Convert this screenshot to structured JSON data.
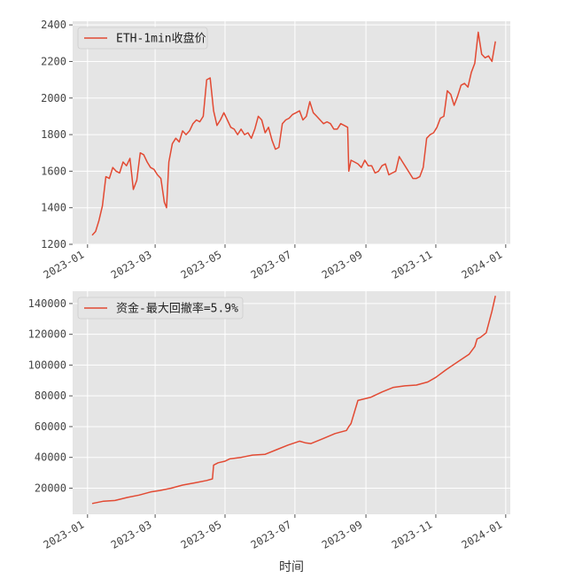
{
  "chart_data": [
    {
      "type": "line",
      "title": "",
      "xlabel": "",
      "ylabel": "",
      "x_ticks": [
        "2023-01",
        "2023-03",
        "2023-05",
        "2023-07",
        "2023-09",
        "2023-11",
        "2024-01"
      ],
      "y_ticks": [
        "1200",
        "1400",
        "1600",
        "1800",
        "2000",
        "2200",
        "2400"
      ],
      "ylim": [
        1200,
        2420
      ],
      "xlim": [
        "2022-12-19",
        "2024-01-05"
      ],
      "grid": true,
      "legend_position": "top-left",
      "colors": {
        "line": "#e24a33",
        "background": "#e5e5e5",
        "grid": "#ffffff"
      },
      "series": [
        {
          "name": "ETH-1min收盘价",
          "x": [
            "2023-01-05",
            "2023-01-08",
            "2023-01-11",
            "2023-01-14",
            "2023-01-17",
            "2023-01-20",
            "2023-01-23",
            "2023-01-26",
            "2023-01-29",
            "2023-02-01",
            "2023-02-04",
            "2023-02-07",
            "2023-02-10",
            "2023-02-13",
            "2023-02-16",
            "2023-02-19",
            "2023-02-22",
            "2023-02-25",
            "2023-02-28",
            "2023-03-03",
            "2023-03-06",
            "2023-03-09",
            "2023-03-11",
            "2023-03-13",
            "2023-03-16",
            "2023-03-19",
            "2023-03-22",
            "2023-03-25",
            "2023-03-28",
            "2023-03-31",
            "2023-04-03",
            "2023-04-06",
            "2023-04-09",
            "2023-04-12",
            "2023-04-15",
            "2023-04-18",
            "2023-04-21",
            "2023-04-24",
            "2023-04-27",
            "2023-04-30",
            "2023-05-03",
            "2023-05-06",
            "2023-05-09",
            "2023-05-12",
            "2023-05-15",
            "2023-05-18",
            "2023-05-21",
            "2023-05-24",
            "2023-05-27",
            "2023-05-30",
            "2023-06-02",
            "2023-06-05",
            "2023-06-08",
            "2023-06-11",
            "2023-06-14",
            "2023-06-17",
            "2023-06-20",
            "2023-06-23",
            "2023-06-26",
            "2023-06-29",
            "2023-07-02",
            "2023-07-05",
            "2023-07-08",
            "2023-07-11",
            "2023-07-14",
            "2023-07-17",
            "2023-07-20",
            "2023-07-23",
            "2023-07-26",
            "2023-07-29",
            "2023-08-01",
            "2023-08-04",
            "2023-08-07",
            "2023-08-10",
            "2023-08-13",
            "2023-08-16",
            "2023-08-17",
            "2023-08-19",
            "2023-08-22",
            "2023-08-25",
            "2023-08-28",
            "2023-08-31",
            "2023-09-03",
            "2023-09-06",
            "2023-09-09",
            "2023-09-12",
            "2023-09-15",
            "2023-09-18",
            "2023-09-21",
            "2023-09-24",
            "2023-09-27",
            "2023-09-30",
            "2023-10-03",
            "2023-10-06",
            "2023-10-09",
            "2023-10-12",
            "2023-10-15",
            "2023-10-18",
            "2023-10-21",
            "2023-10-24",
            "2023-10-27",
            "2023-10-30",
            "2023-11-02",
            "2023-11-05",
            "2023-11-08",
            "2023-11-11",
            "2023-11-14",
            "2023-11-17",
            "2023-11-20",
            "2023-11-23",
            "2023-11-26",
            "2023-11-29",
            "2023-12-02",
            "2023-12-05",
            "2023-12-08",
            "2023-12-11",
            "2023-12-14",
            "2023-12-17",
            "2023-12-20",
            "2023-12-23"
          ],
          "y": [
            1250,
            1270,
            1330,
            1410,
            1570,
            1560,
            1620,
            1600,
            1590,
            1650,
            1630,
            1670,
            1500,
            1550,
            1700,
            1690,
            1650,
            1620,
            1610,
            1580,
            1560,
            1430,
            1400,
            1650,
            1750,
            1780,
            1760,
            1820,
            1800,
            1820,
            1860,
            1880,
            1870,
            1900,
            2100,
            2110,
            1930,
            1850,
            1880,
            1920,
            1880,
            1840,
            1830,
            1800,
            1830,
            1800,
            1810,
            1780,
            1830,
            1900,
            1880,
            1810,
            1840,
            1770,
            1720,
            1730,
            1860,
            1880,
            1890,
            1910,
            1920,
            1930,
            1880,
            1900,
            1980,
            1920,
            1900,
            1880,
            1860,
            1870,
            1860,
            1830,
            1830,
            1860,
            1850,
            1840,
            1600,
            1660,
            1650,
            1640,
            1620,
            1660,
            1630,
            1630,
            1590,
            1600,
            1630,
            1640,
            1580,
            1590,
            1600,
            1680,
            1650,
            1620,
            1590,
            1560,
            1560,
            1570,
            1620,
            1780,
            1800,
            1810,
            1840,
            1890,
            1900,
            2040,
            2020,
            1960,
            2010,
            2070,
            2080,
            2060,
            2140,
            2190,
            2360,
            2240,
            2220,
            2230,
            2200,
            2310
          ]
        }
      ]
    },
    {
      "type": "line",
      "title": "",
      "xlabel": "时间",
      "ylabel": "",
      "x_ticks": [
        "2023-01",
        "2023-03",
        "2023-05",
        "2023-07",
        "2023-09",
        "2023-11",
        "2024-01"
      ],
      "y_ticks": [
        "20000",
        "40000",
        "60000",
        "80000",
        "100000",
        "120000",
        "140000"
      ],
      "ylim": [
        3000,
        148000
      ],
      "xlim": [
        "2022-12-19",
        "2024-01-05"
      ],
      "grid": true,
      "legend_position": "top-left",
      "colors": {
        "line": "#e24a33",
        "background": "#e5e5e5",
        "grid": "#ffffff"
      },
      "series": [
        {
          "name": "资金-最大回撤率=5.9%",
          "x": [
            "2023-01-05",
            "2023-01-15",
            "2023-01-25",
            "2023-02-05",
            "2023-02-15",
            "2023-02-25",
            "2023-03-05",
            "2023-03-15",
            "2023-03-25",
            "2023-04-05",
            "2023-04-15",
            "2023-04-20",
            "2023-04-21",
            "2023-04-25",
            "2023-05-01",
            "2023-05-05",
            "2023-05-15",
            "2023-05-25",
            "2023-06-05",
            "2023-06-15",
            "2023-06-25",
            "2023-07-01",
            "2023-07-05",
            "2023-07-10",
            "2023-07-15",
            "2023-07-25",
            "2023-08-05",
            "2023-08-15",
            "2023-08-17",
            "2023-08-19",
            "2023-08-25",
            "2023-09-05",
            "2023-09-15",
            "2023-09-25",
            "2023-10-05",
            "2023-10-15",
            "2023-10-25",
            "2023-11-01",
            "2023-11-10",
            "2023-11-20",
            "2023-11-30",
            "2023-12-05",
            "2023-12-07",
            "2023-12-10",
            "2023-12-15",
            "2023-12-20",
            "2023-12-23"
          ],
          "y": [
            10000,
            11500,
            12000,
            14000,
            15500,
            17500,
            18500,
            20000,
            22000,
            23500,
            25000,
            26000,
            35000,
            36500,
            37500,
            39000,
            40000,
            41500,
            42000,
            45000,
            48000,
            49500,
            50500,
            49500,
            49000,
            52000,
            55500,
            57500,
            60000,
            62000,
            77000,
            79000,
            82500,
            85500,
            86500,
            87000,
            89000,
            92000,
            97000,
            102000,
            107000,
            112000,
            117000,
            118000,
            121000,
            135000,
            145000
          ]
        }
      ]
    }
  ]
}
